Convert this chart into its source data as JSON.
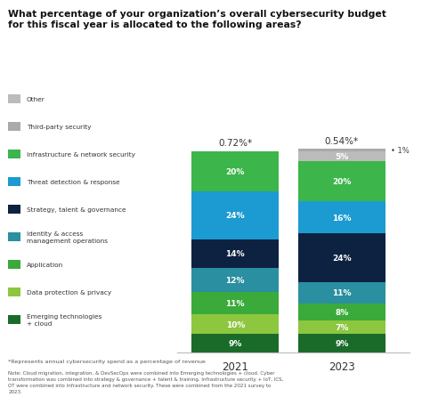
{
  "title": "What percentage of your organization’s overall cybersecurity budget\nfor this fiscal year is allocated to the following areas?",
  "years": [
    "2021",
    "2023"
  ],
  "values_2021": [
    9,
    10,
    11,
    12,
    14,
    24,
    20
  ],
  "labels_2021": [
    "9%",
    "10%",
    "11%",
    "12%",
    "14%",
    "24%",
    "20%"
  ],
  "colors_2021": [
    "#1a6b2a",
    "#8dc63f",
    "#3aaa3a",
    "#2a8fa0",
    "#0d2240",
    "#1b9bd1",
    "#3cb54a"
  ],
  "values_2023": [
    9,
    7,
    8,
    11,
    24,
    16,
    20,
    5,
    1
  ],
  "labels_2023": [
    "9%",
    "7%",
    "8%",
    "11%",
    "24%",
    "16%",
    "20%",
    "5%",
    "1%"
  ],
  "colors_2023": [
    "#1a6b2a",
    "#8dc63f",
    "#3aaa3a",
    "#2a8fa0",
    "#0d2240",
    "#1b9bd1",
    "#3cb54a",
    "#bbbbbb",
    "#aaaaaa"
  ],
  "annotation_2021": "0.72%*",
  "annotation_2023": "0.54%*",
  "legend_labels": [
    "Other",
    "Third-party security",
    "Infrastructure & network security",
    "Threat detection & response",
    "Strategy, talent & governance",
    "Identity & access\nmanagement operations",
    "Application",
    "Data protection & privacy",
    "Emerging technologies\n+ cloud"
  ],
  "legend_colors": [
    "#bbbbbb",
    "#aaaaaa",
    "#3cb54a",
    "#1b9bd1",
    "#0d2240",
    "#2a8fa0",
    "#3aaa3a",
    "#8dc63f",
    "#1a6b2a"
  ],
  "footnote1": "*Represents annual cybersecurity spend as a percentage of revenue",
  "footnote2": "Note: Cloud migration, integration, & DevSecOps were combined into Emerging technologies + cloud. Cyber\ntransformation was combined into strategy & governance + talent & training. Infrastructure security + IoT, ICS,\nOT were combined into Infrastructure and network security. These were combined from the 2021 survey to\n2023.",
  "background_color": "#ffffff"
}
